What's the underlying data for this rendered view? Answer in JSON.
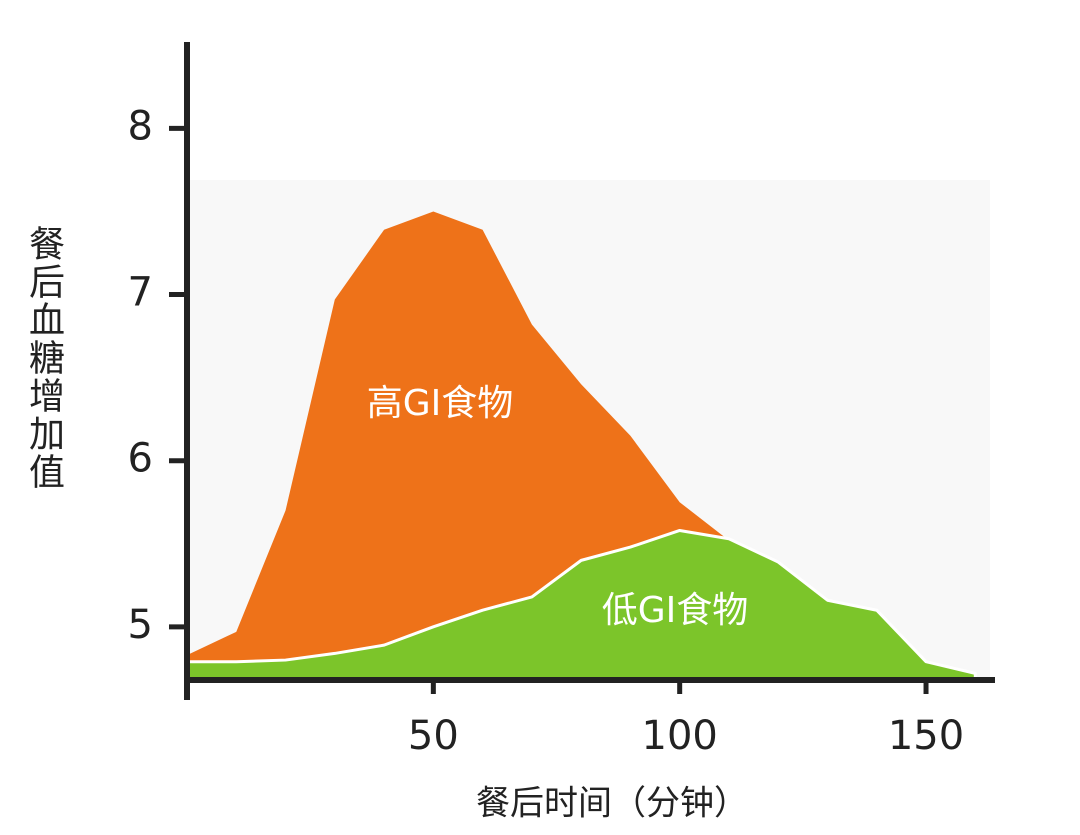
{
  "chart_data": {
    "type": "area",
    "x": [
      0,
      10,
      20,
      30,
      40,
      50,
      60,
      70,
      80,
      90,
      100,
      110,
      120,
      130,
      140,
      150,
      160
    ],
    "series": [
      {
        "name": "高GI食物",
        "color": "#ee7219",
        "values": [
          4.83,
          4.97,
          5.7,
          6.97,
          7.39,
          7.5,
          7.39,
          6.82,
          6.46,
          6.15,
          5.75,
          5.52,
          null,
          null,
          null,
          null,
          null
        ]
      },
      {
        "name": "低GI食物",
        "color": "#7cc52a",
        "values": [
          4.79,
          4.79,
          4.8,
          4.84,
          4.89,
          5.0,
          5.1,
          5.18,
          5.4,
          5.48,
          5.58,
          5.53,
          5.39,
          5.16,
          5.1,
          4.79,
          4.72
        ]
      }
    ],
    "xlabel": "餐后时间（分钟）",
    "ylabel": "餐后血糖增加值",
    "xlim": [
      0,
      164
    ],
    "ylim": [
      4.68,
      8.52
    ],
    "xticks": [
      50,
      100,
      150
    ],
    "yticks": [
      5,
      6,
      7,
      8
    ]
  }
}
